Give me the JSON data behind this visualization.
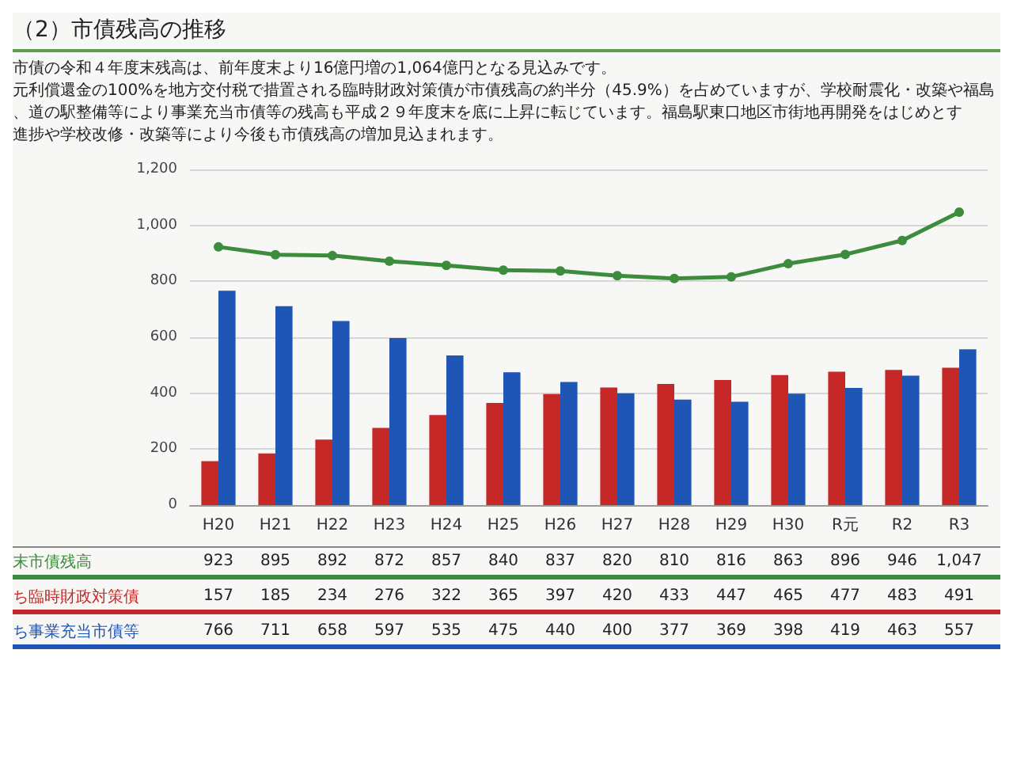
{
  "chart_data": {
    "type": "bar",
    "title": "（2）市債残高の推移",
    "annotations": [
      "市債の令和４年度末残高は、前年度末より16億円増の1,064億円となる見込みです。",
      "元利償還金の100%を地方交付税で措置される臨時財政対策債が市債残高の約半分（45.9%）を占めていますが、学校耐震化・改築や福島",
      "、道の駅整備等により事業充当市債等の残高も平成２９年度末を底に上昇に転じています。福島駅東口地区市街地再開発をはじめとす",
      "進捗や学校改修・改築等により今後も市債残高の増加見込まれます。"
    ],
    "categories": [
      "H20",
      "H21",
      "H22",
      "H23",
      "H24",
      "H25",
      "H26",
      "H27",
      "H28",
      "H29",
      "H30",
      "R元",
      "R2",
      "R3"
    ],
    "series": [
      {
        "name": "末市債残高",
        "type": "line",
        "color": "#3d8b3d",
        "values": [
          923,
          895,
          892,
          872,
          857,
          840,
          837,
          820,
          810,
          816,
          863,
          896,
          946,
          1047
        ],
        "value_labels": [
          "923",
          "895",
          "892",
          "872",
          "857",
          "840",
          "837",
          "820",
          "810",
          "816",
          "863",
          "896",
          "946",
          "1,047"
        ]
      },
      {
        "name": "ち臨時財政対策債",
        "color": "#c62828",
        "values": [
          157,
          185,
          234,
          276,
          322,
          365,
          397,
          420,
          433,
          447,
          465,
          477,
          483,
          491
        ],
        "value_labels": [
          "157",
          "185",
          "234",
          "276",
          "322",
          "365",
          "397",
          "420",
          "433",
          "447",
          "465",
          "477",
          "483",
          "491"
        ]
      },
      {
        "name": "ち事業充当市債等",
        "color": "#1f55b5",
        "values": [
          766,
          711,
          658,
          597,
          535,
          475,
          440,
          400,
          377,
          369,
          398,
          419,
          463,
          557
        ],
        "value_labels": [
          "766",
          "711",
          "658",
          "597",
          "535",
          "475",
          "440",
          "400",
          "377",
          "369",
          "398",
          "419",
          "463",
          "557"
        ]
      }
    ],
    "ylim": [
      0,
      1200
    ],
    "yticks": [
      0,
      200,
      400,
      600,
      800,
      {
        "value": 1000,
        "label": "1,000"
      },
      {
        "value": 1200,
        "label": "1,200"
      }
    ],
    "grid": "y",
    "legend": "bottom",
    "marker": "circle"
  }
}
